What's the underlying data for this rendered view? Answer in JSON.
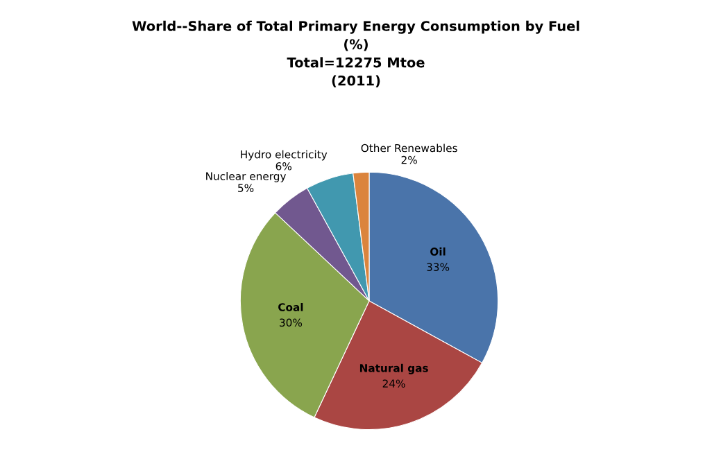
{
  "chart_data": {
    "type": "pie",
    "title": "World--Share of Total Primary Energy Consumption by Fuel\n(%)\nTotal=12275 Mtoe\n(2011)",
    "categories": [
      "Oil",
      "Natural gas",
      "Coal",
      "Nuclear energy",
      "Hydro electricity",
      "Other Renewables"
    ],
    "values": [
      33,
      24,
      30,
      5,
      6,
      2
    ],
    "value_labels": [
      "33%",
      "24%",
      "30%",
      "5%",
      "6%",
      "2%"
    ],
    "colors": [
      "#4a74aa",
      "#aa4643",
      "#89a54e",
      "#71588f",
      "#4198af",
      "#db843d"
    ],
    "legend": false
  }
}
